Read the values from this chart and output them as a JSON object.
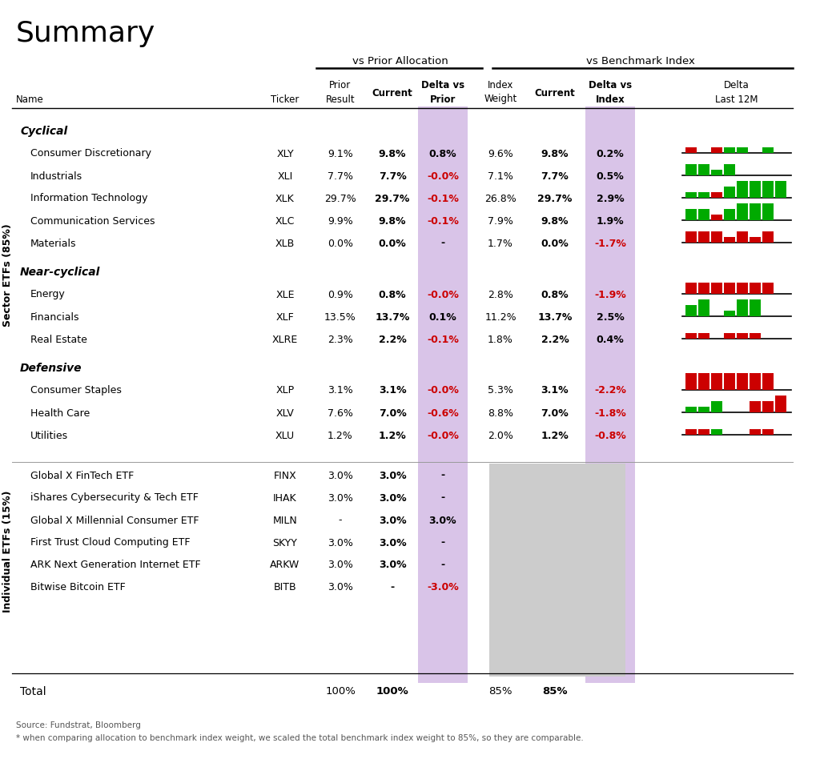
{
  "title": "Summary",
  "section_label_top": "vs Prior Allocation",
  "section_label_top2": "vs Benchmark Index",
  "sector_etfs_label": "Sector ETFs (85%)",
  "individual_etfs_label": "Individual ETFs (15%)",
  "groups": [
    {
      "name": "Cyclical",
      "rows": [
        {
          "name": "Consumer Discretionary",
          "ticker": "XLY",
          "prior": "9.1%",
          "current": "9.8%",
          "delta_prior": "0.8%",
          "delta_prior_color": "black",
          "idx_weight": "9.6%",
          "idx_current": "9.8%",
          "delta_idx": "0.2%",
          "delta_idx_color": "black",
          "spark": [
            [
              "r",
              1
            ],
            [
              "r",
              0
            ],
            [
              "r",
              1
            ],
            [
              "g",
              1
            ],
            [
              "g",
              1
            ],
            [
              "r",
              0
            ],
            [
              "g",
              1
            ],
            [
              "r",
              0
            ]
          ]
        },
        {
          "name": "Industrials",
          "ticker": "XLI",
          "prior": "7.7%",
          "current": "7.7%",
          "delta_prior": "-0.0%",
          "delta_prior_color": "red",
          "idx_weight": "7.1%",
          "idx_current": "7.7%",
          "delta_idx": "0.5%",
          "delta_idx_color": "black",
          "spark": [
            [
              "g",
              2
            ],
            [
              "g",
              2
            ],
            [
              "g",
              1
            ],
            [
              "g",
              2
            ],
            [
              "g",
              0
            ],
            [
              "g",
              0
            ],
            [
              "g",
              0
            ],
            [
              "g",
              0
            ]
          ]
        },
        {
          "name": "Information Technology",
          "ticker": "XLK",
          "prior": "29.7%",
          "current": "29.7%",
          "delta_prior": "-0.1%",
          "delta_prior_color": "red",
          "idx_weight": "26.8%",
          "idx_current": "29.7%",
          "delta_idx": "2.9%",
          "delta_idx_color": "black",
          "spark": [
            [
              "g",
              1
            ],
            [
              "g",
              1
            ],
            [
              "r",
              1
            ],
            [
              "g",
              2
            ],
            [
              "g",
              3
            ],
            [
              "g",
              3
            ],
            [
              "g",
              3
            ],
            [
              "g",
              3
            ]
          ]
        },
        {
          "name": "Communication Services",
          "ticker": "XLC",
          "prior": "9.9%",
          "current": "9.8%",
          "delta_prior": "-0.1%",
          "delta_prior_color": "red",
          "idx_weight": "7.9%",
          "idx_current": "9.8%",
          "delta_idx": "1.9%",
          "delta_idx_color": "black",
          "spark": [
            [
              "g",
              2
            ],
            [
              "g",
              2
            ],
            [
              "r",
              1
            ],
            [
              "g",
              2
            ],
            [
              "g",
              3
            ],
            [
              "g",
              3
            ],
            [
              "g",
              3
            ],
            [
              "g",
              0
            ]
          ]
        },
        {
          "name": "Materials",
          "ticker": "XLB",
          "prior": "0.0%",
          "current": "0.0%",
          "delta_prior": "-",
          "delta_prior_color": "black",
          "idx_weight": "1.7%",
          "idx_current": "0.0%",
          "delta_idx": "-1.7%",
          "delta_idx_color": "red",
          "spark": [
            [
              "r",
              2
            ],
            [
              "r",
              2
            ],
            [
              "r",
              2
            ],
            [
              "r",
              1
            ],
            [
              "r",
              2
            ],
            [
              "r",
              1
            ],
            [
              "r",
              2
            ],
            [
              "r",
              0
            ]
          ]
        }
      ]
    },
    {
      "name": "Near-cyclical",
      "rows": [
        {
          "name": "Energy",
          "ticker": "XLE",
          "prior": "0.9%",
          "current": "0.8%",
          "delta_prior": "-0.0%",
          "delta_prior_color": "red",
          "idx_weight": "2.8%",
          "idx_current": "0.8%",
          "delta_idx": "-1.9%",
          "delta_idx_color": "red",
          "spark": [
            [
              "r",
              2
            ],
            [
              "r",
              2
            ],
            [
              "r",
              2
            ],
            [
              "r",
              2
            ],
            [
              "r",
              2
            ],
            [
              "r",
              2
            ],
            [
              "r",
              2
            ],
            [
              "r",
              0
            ]
          ]
        },
        {
          "name": "Financials",
          "ticker": "XLF",
          "prior": "13.5%",
          "current": "13.7%",
          "delta_prior": "0.1%",
          "delta_prior_color": "black",
          "idx_weight": "11.2%",
          "idx_current": "13.7%",
          "delta_idx": "2.5%",
          "delta_idx_color": "black",
          "spark": [
            [
              "g",
              2
            ],
            [
              "g",
              3
            ],
            [
              "g",
              0
            ],
            [
              "g",
              1
            ],
            [
              "g",
              3
            ],
            [
              "g",
              3
            ],
            [
              "g",
              0
            ],
            [
              "g",
              0
            ]
          ]
        },
        {
          "name": "Real Estate",
          "ticker": "XLRE",
          "prior": "2.3%",
          "current": "2.2%",
          "delta_prior": "-0.1%",
          "delta_prior_color": "red",
          "idx_weight": "1.8%",
          "idx_current": "2.2%",
          "delta_idx": "0.4%",
          "delta_idx_color": "black",
          "spark": [
            [
              "r",
              1
            ],
            [
              "r",
              1
            ],
            [
              "r",
              0
            ],
            [
              "r",
              1
            ],
            [
              "r",
              1
            ],
            [
              "r",
              1
            ],
            [
              "r",
              0
            ],
            [
              "r",
              0
            ]
          ]
        }
      ]
    },
    {
      "name": "Defensive",
      "rows": [
        {
          "name": "Consumer Staples",
          "ticker": "XLP",
          "prior": "3.1%",
          "current": "3.1%",
          "delta_prior": "-0.0%",
          "delta_prior_color": "red",
          "idx_weight": "5.3%",
          "idx_current": "3.1%",
          "delta_idx": "-2.2%",
          "delta_idx_color": "red",
          "spark": [
            [
              "r",
              3
            ],
            [
              "r",
              3
            ],
            [
              "r",
              3
            ],
            [
              "r",
              3
            ],
            [
              "r",
              3
            ],
            [
              "r",
              3
            ],
            [
              "r",
              3
            ],
            [
              "r",
              0
            ]
          ]
        },
        {
          "name": "Health Care",
          "ticker": "XLV",
          "prior": "7.6%",
          "current": "7.0%",
          "delta_prior": "-0.6%",
          "delta_prior_color": "red",
          "idx_weight": "8.8%",
          "idx_current": "7.0%",
          "delta_idx": "-1.8%",
          "delta_idx_color": "red",
          "spark": [
            [
              "g",
              1
            ],
            [
              "g",
              1
            ],
            [
              "g",
              2
            ],
            [
              "r",
              0
            ],
            [
              "r",
              0
            ],
            [
              "r",
              2
            ],
            [
              "r",
              2
            ],
            [
              "r",
              3
            ]
          ]
        },
        {
          "name": "Utilities",
          "ticker": "XLU",
          "prior": "1.2%",
          "current": "1.2%",
          "delta_prior": "-0.0%",
          "delta_prior_color": "red",
          "idx_weight": "2.0%",
          "idx_current": "1.2%",
          "delta_idx": "-0.8%",
          "delta_idx_color": "red",
          "spark": [
            [
              "r",
              1
            ],
            [
              "r",
              1
            ],
            [
              "g",
              1
            ],
            [
              "r",
              0
            ],
            [
              "r",
              0
            ],
            [
              "r",
              1
            ],
            [
              "r",
              1
            ],
            [
              "r",
              0
            ]
          ]
        }
      ]
    }
  ],
  "individual_rows": [
    {
      "name": "Global X FinTech ETF",
      "ticker": "FINX",
      "prior": "3.0%",
      "current": "3.0%",
      "delta_prior": "-",
      "delta_prior_color": "black"
    },
    {
      "name": "iShares Cybersecurity & Tech ETF",
      "ticker": "IHAK",
      "prior": "3.0%",
      "current": "3.0%",
      "delta_prior": "-",
      "delta_prior_color": "black"
    },
    {
      "name": "Global X Millennial Consumer ETF",
      "ticker": "MILN",
      "prior": "-",
      "current": "3.0%",
      "delta_prior": "3.0%",
      "delta_prior_color": "black"
    },
    {
      "name": "First Trust Cloud Computing ETF",
      "ticker": "SKYY",
      "prior": "3.0%",
      "current": "3.0%",
      "delta_prior": "-",
      "delta_prior_color": "black"
    },
    {
      "name": "ARK Next Generation Internet ETF",
      "ticker": "ARKW",
      "prior": "3.0%",
      "current": "3.0%",
      "delta_prior": "-",
      "delta_prior_color": "black"
    },
    {
      "name": "Bitwise Bitcoin ETF",
      "ticker": "BITB",
      "prior": "3.0%",
      "current": "-",
      "delta_prior": "-3.0%",
      "delta_prior_color": "red"
    }
  ],
  "total_row": {
    "prior": "100%",
    "current": "100%",
    "idx_weight": "85%",
    "idx_current": "85%"
  },
  "footnote1": "Source: Fundstrat, Bloomberg",
  "footnote2": "* when comparing allocation to benchmark index weight, we scaled the total benchmark index weight to 85%, so they are comparable.",
  "purple_bg": "#d9c4e8",
  "gray_bg": "#cccccc",
  "red_color": "#cc0000",
  "green_color": "#00aa00",
  "black_color": "#000000",
  "title_fs": 26,
  "body_fs": 9,
  "header_fs": 8.5
}
